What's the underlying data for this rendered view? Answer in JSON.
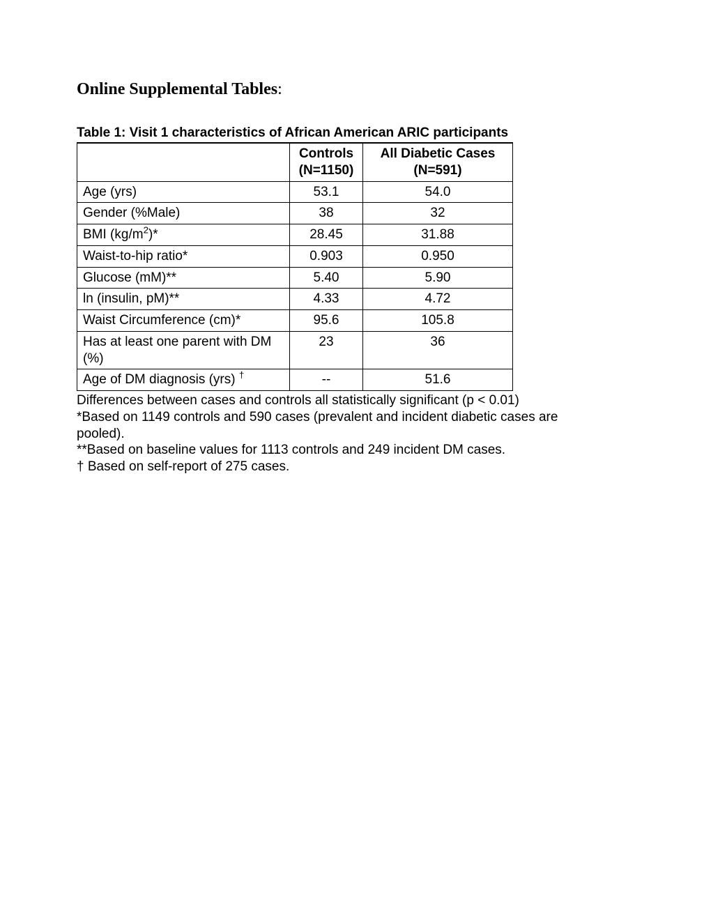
{
  "section_title": "Online Supplemental Tables",
  "section_title_suffix": ":",
  "table": {
    "title": "Table 1: Visit 1 characteristics of African American ARIC participants",
    "columns": [
      {
        "label": "",
        "sub": ""
      },
      {
        "label": "Controls",
        "sub": "(N=1150)"
      },
      {
        "label": "All Diabetic Cases",
        "sub": "(N=591)"
      }
    ],
    "rows": [
      {
        "label_html": "Age (yrs)",
        "controls": "53.1",
        "cases": "54.0"
      },
      {
        "label_html": "Gender (%Male)",
        "controls": "38",
        "cases": "32"
      },
      {
        "label_html": "BMI (kg/m<span class=\"sup\">2</span>)*",
        "controls": "28.45",
        "cases": "31.88"
      },
      {
        "label_html": "Waist-to-hip ratio*",
        "controls": "0.903",
        "cases": "0.950"
      },
      {
        "label_html": "Glucose (mM)**",
        "controls": "5.40",
        "cases": "5.90"
      },
      {
        "label_html": "ln (insulin, pM)**",
        "controls": "4.33",
        "cases": "4.72"
      },
      {
        "label_html": "Waist Circumference (cm)*",
        "controls": "95.6",
        "cases": "105.8"
      },
      {
        "label_html": "Has at least one parent with DM (%)",
        "controls": "23",
        "cases": "36"
      },
      {
        "label_html": "Age of DM diagnosis (yrs) <span class=\"sup\">†</span>",
        "controls": "--",
        "cases": "51.6"
      }
    ]
  },
  "footnotes": [
    "Differences between cases and controls all statistically significant (p < 0.01)",
    "*Based on 1149 controls and 590 cases (prevalent and incident diabetic cases are pooled).",
    "**Based on baseline values for 1113 controls and 249 incident DM cases.",
    "† Based on self-report of 275 cases."
  ]
}
